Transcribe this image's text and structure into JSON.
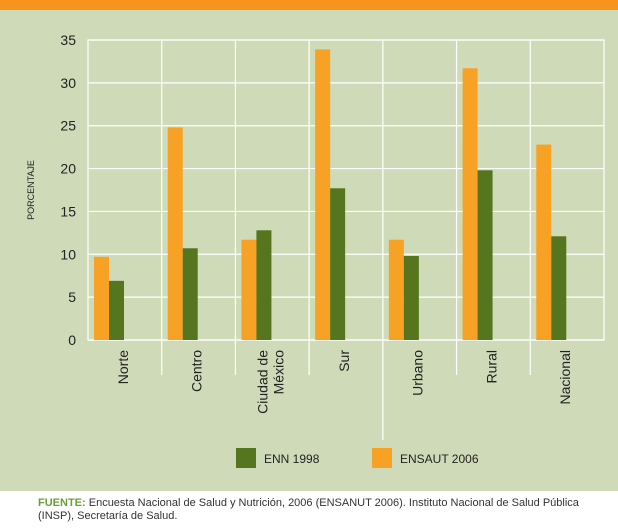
{
  "colors": {
    "panel_bg": "#cfdbb8",
    "top_band": "#f7941d",
    "grid": "#ffffff",
    "plot_bg": "#cfdbb8"
  },
  "chart_data": {
    "type": "bar",
    "ylabel": "PORCENTAJE",
    "xlabel": "",
    "ylim": [
      0,
      35
    ],
    "yticks": [
      0,
      5,
      10,
      15,
      20,
      25,
      30,
      35
    ],
    "grid": true,
    "legend_position": "bottom-center",
    "categories": [
      [
        "Norte"
      ],
      [
        "Centro"
      ],
      [
        "Ciudad de",
        "México"
      ],
      [
        "Sur"
      ],
      [
        "Urbano"
      ],
      [
        "Rural"
      ],
      [
        "Nacional"
      ]
    ],
    "series": [
      {
        "name": "ENSAUT 2006",
        "color": "#f7a125",
        "values": [
          9.7,
          24.8,
          11.7,
          33.9,
          11.7,
          31.7,
          22.8
        ]
      },
      {
        "name": "ENN 1998",
        "color": "#55751f",
        "values": [
          6.9,
          10.7,
          12.8,
          17.7,
          9.8,
          19.8,
          12.1
        ]
      }
    ],
    "legend": [
      {
        "name": "ENN 1998",
        "color": "#55751f"
      },
      {
        "name": "ENSAUT 2006",
        "color": "#f7a125"
      }
    ]
  },
  "source": {
    "label": "FUENTE:",
    "text": "Encuesta Nacional de Salud y Nutrición, 2006 (ENSANUT 2006). Instituto Nacional de Salud Pública (INSP), Secretaría de Salud."
  }
}
